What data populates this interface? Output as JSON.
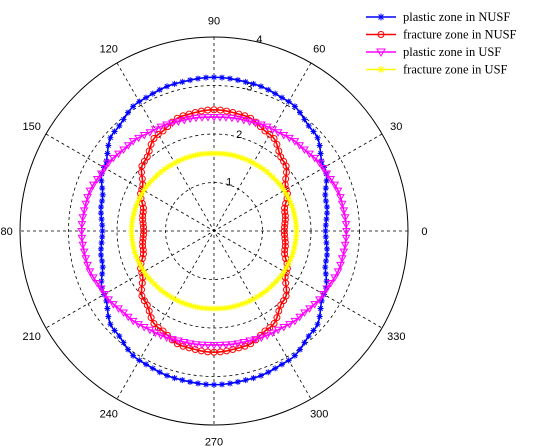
{
  "chart_data": {
    "type": "polar-line",
    "r_ticks": [
      1,
      2,
      3,
      4
    ],
    "r_max": 4,
    "theta_ticks": [
      0,
      30,
      60,
      90,
      120,
      150,
      180,
      210,
      240,
      270,
      300,
      330
    ],
    "grid": true,
    "legend_position": "top-right",
    "series": [
      {
        "name": "plastic zone in NUSF",
        "color": "#0000ff",
        "marker": "star",
        "theta_deg": [
          0,
          15,
          30,
          45,
          60,
          75,
          90
        ],
        "r": [
          2.3,
          2.39,
          2.62,
          2.9,
          3.08,
          3.14,
          3.17
        ]
      },
      {
        "name": "fracture zone in NUSF",
        "color": "#ff0000",
        "marker": "circle",
        "theta_deg": [
          0,
          15,
          30,
          45,
          60,
          75,
          90
        ],
        "r": [
          1.45,
          1.51,
          1.72,
          2.03,
          2.3,
          2.46,
          2.5
        ]
      },
      {
        "name": "plastic zone in USF",
        "color": "#ff00ff",
        "marker": "triangle-down",
        "theta_deg": [
          0,
          15,
          30,
          45,
          60,
          75,
          90
        ],
        "r": [
          2.73,
          2.7,
          2.6,
          2.5,
          2.42,
          2.37,
          2.35
        ]
      },
      {
        "name": "fracture zone in USF",
        "color": "#ffff00",
        "marker": "star",
        "theta_deg": [
          0,
          15,
          30,
          45,
          60,
          75,
          90
        ],
        "r": [
          1.7,
          1.69,
          1.67,
          1.64,
          1.62,
          1.61,
          1.6
        ]
      }
    ]
  }
}
